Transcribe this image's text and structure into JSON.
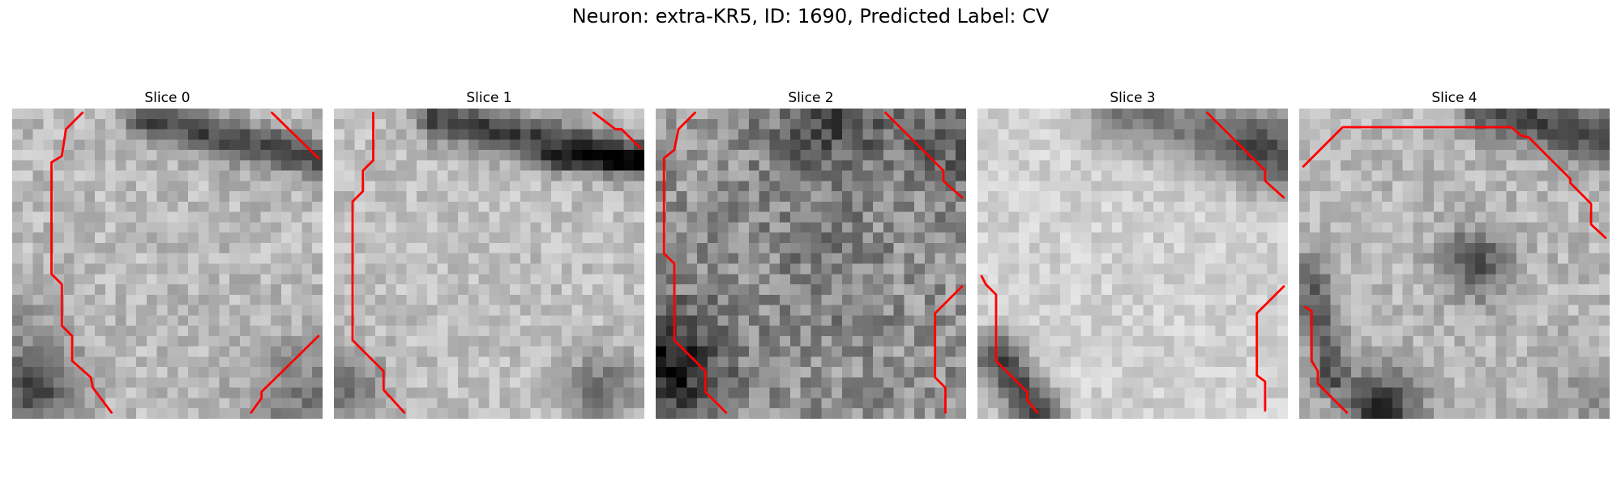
{
  "figure": {
    "title": "Neuron: extra-KR5, ID: 1690, Predicted Label: CV"
  },
  "panels": [
    {
      "title": "Slice 0"
    },
    {
      "title": "Slice 1"
    },
    {
      "title": "Slice 2"
    },
    {
      "title": "Slice 3"
    },
    {
      "title": "Slice 4"
    }
  ],
  "colors": {
    "contour": "#ff0000"
  }
}
